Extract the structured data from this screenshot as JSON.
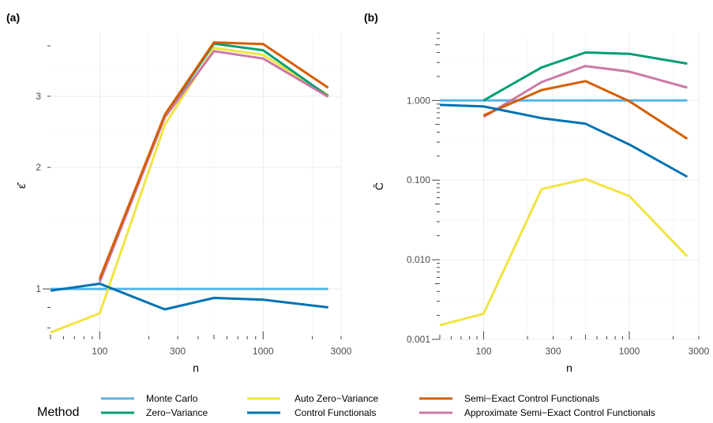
{
  "colors": {
    "Monte Carlo": "#56B4E9",
    "Zero-Variance": "#009E73",
    "Auto Zero-Variance": "#F0E442",
    "Control Functionals": "#0072B2",
    "Semi-Exact Control Functionals": "#D55E00",
    "Approximate Semi-Exact Control Functionals": "#CC79A7"
  },
  "legend": {
    "title": "Method",
    "entries": [
      "Monte Carlo",
      "Zero−Variance",
      "Auto Zero−Variance",
      "Control Functionals",
      "Semi−Exact Control Functionals",
      "Approximate Semi−Exact Control Functionals"
    ],
    "placement": "bottom"
  },
  "chart_data": [
    {
      "type": "line",
      "panel_label": "(a)",
      "xlabel": "n",
      "ylabel": "ε̂",
      "x_scale": "log",
      "y_scale": "log",
      "xlim": [
        50,
        3000
      ],
      "ylim": [
        0.75,
        4.3
      ],
      "x_ticks": [
        100,
        300,
        1000,
        3000
      ],
      "x_tick_labels": [
        "100",
        "300",
        "1000",
        "3000"
      ],
      "y_ticks": [
        1,
        2,
        3
      ],
      "y_tick_labels": [
        "1",
        "2",
        "3"
      ],
      "x": [
        50,
        100,
        250,
        500,
        1000,
        2500
      ],
      "series": [
        {
          "name": "Monte Carlo",
          "values": [
            1.0,
            1.0,
            1.0,
            1.0,
            1.0,
            1.0
          ]
        },
        {
          "name": "Auto Zero-Variance",
          "values": [
            0.78,
            0.87,
            2.55,
            3.95,
            3.8,
            3.02
          ]
        },
        {
          "name": "Control Functionals",
          "values": [
            0.99,
            1.03,
            0.89,
            0.95,
            0.94,
            0.9
          ]
        },
        {
          "name": "Zero-Variance",
          "values": [
            null,
            1.05,
            2.68,
            4.05,
            3.9,
            3.0
          ]
        },
        {
          "name": "Approximate Semi-Exact Control Functionals",
          "values": [
            null,
            1.04,
            2.66,
            3.88,
            3.72,
            2.99
          ]
        },
        {
          "name": "Semi-Exact Control Functionals",
          "values": [
            null,
            1.06,
            2.7,
            4.08,
            4.04,
            3.15
          ]
        }
      ]
    },
    {
      "type": "line",
      "panel_label": "(b)",
      "xlabel": "n",
      "ylabel": "Ĉ",
      "x_scale": "log",
      "y_scale": "log",
      "xlim": [
        50,
        3000
      ],
      "ylim": [
        0.001,
        7.0
      ],
      "x_ticks": [
        100,
        300,
        1000,
        3000
      ],
      "x_tick_labels": [
        "100",
        "300",
        "1000",
        "3000"
      ],
      "y_ticks": [
        0.001,
        0.01,
        0.1,
        1.0
      ],
      "y_tick_labels": [
        "0.001",
        "0.010",
        "0.100",
        "1.000"
      ],
      "x": [
        50,
        100,
        250,
        500,
        1000,
        2500
      ],
      "series": [
        {
          "name": "Monte Carlo",
          "values": [
            1.0,
            1.0,
            1.0,
            1.0,
            1.0,
            1.0
          ]
        },
        {
          "name": "Zero-Variance",
          "values": [
            null,
            1.0,
            2.6,
            4.0,
            3.85,
            2.9
          ]
        },
        {
          "name": "Approximate Semi-Exact Control Functionals",
          "values": [
            null,
            0.62,
            1.7,
            2.7,
            2.3,
            1.45
          ]
        },
        {
          "name": "Semi-Exact Control Functionals",
          "values": [
            null,
            0.65,
            1.35,
            1.75,
            0.98,
            0.33
          ]
        },
        {
          "name": "Control Functionals",
          "values": [
            0.88,
            0.84,
            0.6,
            0.51,
            0.28,
            0.11
          ]
        },
        {
          "name": "Auto Zero-Variance",
          "values": [
            0.0015,
            0.0021,
            0.077,
            0.103,
            0.063,
            0.011
          ]
        }
      ]
    }
  ]
}
